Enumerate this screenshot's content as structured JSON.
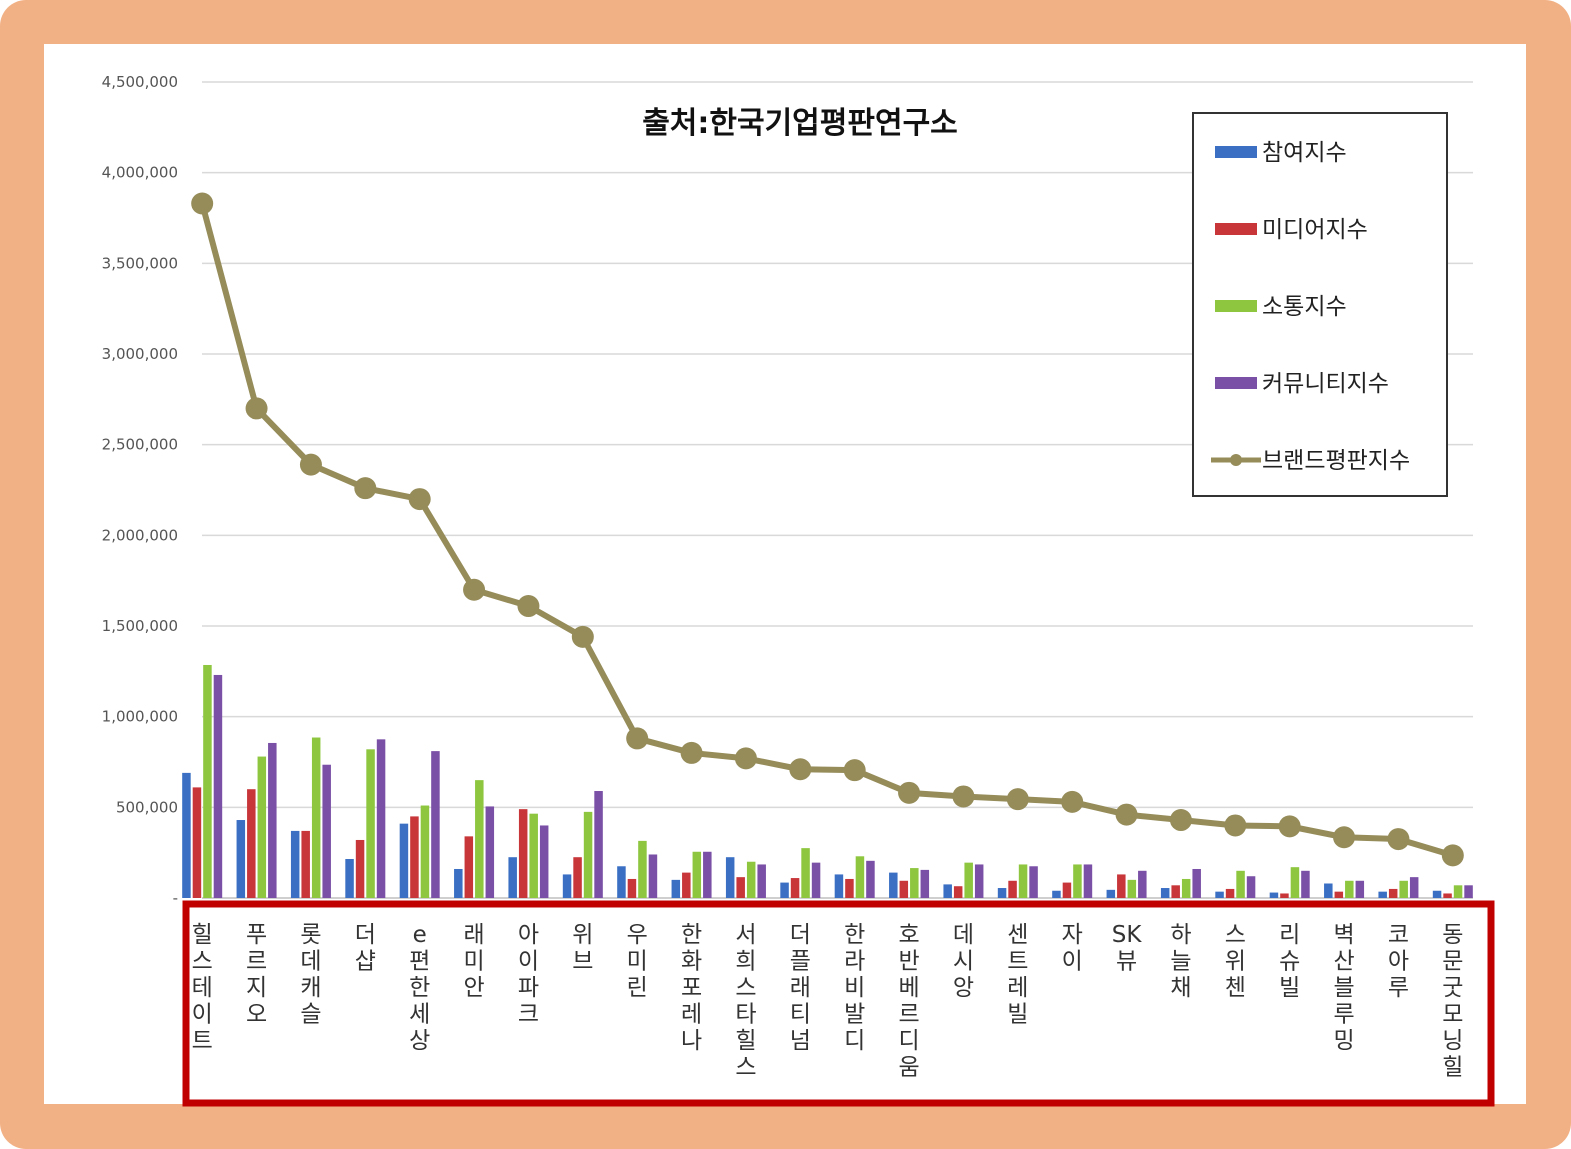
{
  "chart_data": {
    "type": "bar",
    "title": "출처:한국기업평판연구소",
    "ylim": [
      0,
      4500000
    ],
    "yticks": [
      "-",
      "500,000",
      "1,000,000",
      "1,500,000",
      "2,000,000",
      "2,500,000",
      "3,000,000",
      "3,500,000",
      "4,000,000",
      "4,500,000"
    ],
    "grid": true,
    "legend_position": "top-right",
    "categories": [
      "힐스테이트",
      "푸르지오",
      "롯데캐슬",
      "더샵",
      "e편한세상",
      "래미안",
      "아이파크",
      "위브",
      "우미린",
      "한화포레나",
      "서희스타힐스",
      "더플래티넘",
      "한라비발디",
      "호반베르디움",
      "데시앙",
      "센트레빌",
      "자이",
      "SK뷰",
      "하늘채",
      "스위첸",
      "리슈빌",
      "벽산블루밍",
      "코아루",
      "동문굿모닝힐"
    ],
    "series": [
      {
        "name": "참여지수",
        "type": "bar",
        "color": "#3a6fc4",
        "values": [
          690000,
          430000,
          370000,
          215000,
          410000,
          160000,
          225000,
          130000,
          175000,
          100000,
          225000,
          85000,
          130000,
          140000,
          75000,
          55000,
          40000,
          45000,
          55000,
          35000,
          30000,
          80000,
          35000,
          40000
        ]
      },
      {
        "name": "미디어지수",
        "type": "bar",
        "color": "#c8363a",
        "values": [
          610000,
          600000,
          370000,
          320000,
          450000,
          340000,
          490000,
          225000,
          105000,
          140000,
          115000,
          110000,
          105000,
          95000,
          65000,
          95000,
          85000,
          130000,
          70000,
          50000,
          25000,
          35000,
          50000,
          25000
        ]
      },
      {
        "name": "소통지수",
        "type": "bar",
        "color": "#8ec63f",
        "values": [
          1285000,
          780000,
          885000,
          820000,
          510000,
          650000,
          465000,
          475000,
          315000,
          255000,
          200000,
          275000,
          230000,
          165000,
          195000,
          185000,
          185000,
          100000,
          105000,
          150000,
          170000,
          95000,
          95000,
          70000
        ]
      },
      {
        "name": "커뮤니티지수",
        "type": "bar",
        "color": "#7a4fa6",
        "values": [
          1230000,
          855000,
          735000,
          875000,
          810000,
          505000,
          400000,
          590000,
          240000,
          255000,
          185000,
          195000,
          205000,
          155000,
          185000,
          175000,
          185000,
          150000,
          160000,
          120000,
          150000,
          95000,
          115000,
          70000
        ]
      },
      {
        "name": "브랜드평판지수",
        "type": "line",
        "color": "#958c5a",
        "values": [
          3830000,
          2700000,
          2390000,
          2260000,
          2200000,
          1700000,
          1610000,
          1440000,
          880000,
          800000,
          770000,
          710000,
          705000,
          580000,
          560000,
          545000,
          530000,
          460000,
          430000,
          400000,
          395000,
          335000,
          325000,
          235000
        ]
      }
    ]
  }
}
